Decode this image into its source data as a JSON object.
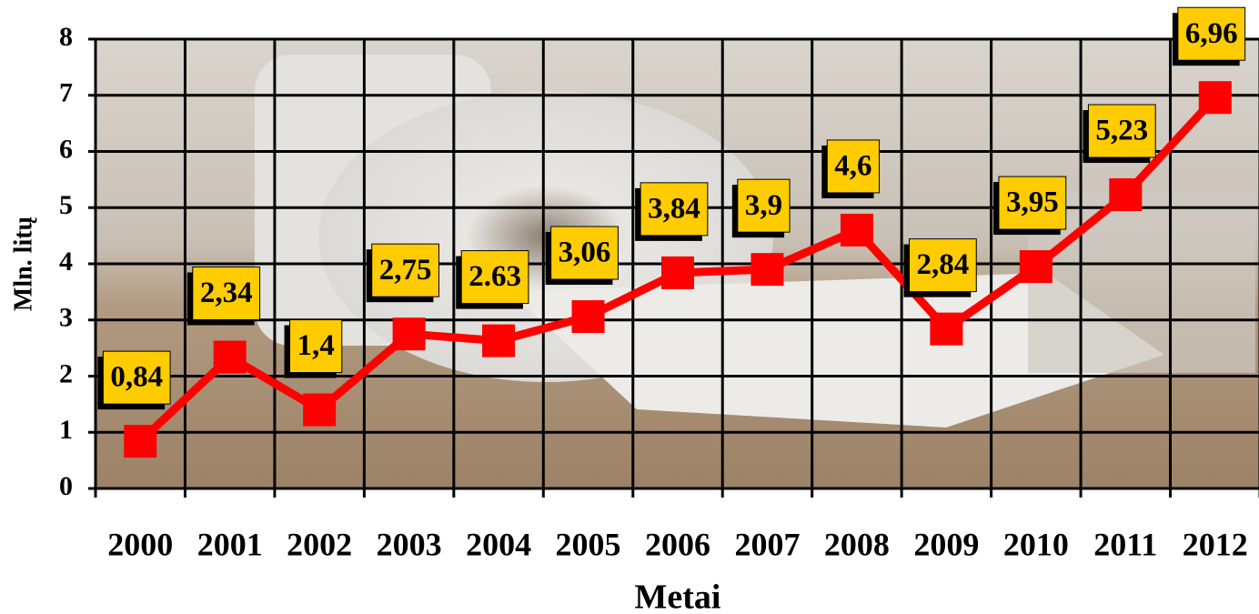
{
  "chart_data": {
    "type": "line",
    "x_label": "Metai",
    "y_label": "Mln. litų",
    "categories": [
      "2000",
      "2001",
      "2002",
      "2003",
      "2004",
      "2005",
      "2006",
      "2007",
      "2008",
      "2009",
      "2010",
      "2011",
      "2012"
    ],
    "values": [
      0.84,
      2.34,
      1.4,
      2.75,
      2.63,
      3.06,
      3.84,
      3.9,
      4.6,
      2.84,
      3.95,
      5.23,
      6.96
    ],
    "value_labels": [
      "0,84",
      "2,34",
      "1,4",
      "2,75",
      "2.63",
      "3,06",
      "3,84",
      "3,9",
      "4,6",
      "2,84",
      "3,95",
      "5,23",
      "6,96"
    ],
    "color": "#ff0000",
    "label_box_color": "#ffcc00",
    "ylim": [
      0,
      8
    ],
    "yticks": [
      0,
      1,
      2,
      3,
      4,
      5,
      6,
      7,
      8
    ],
    "grid": true
  }
}
